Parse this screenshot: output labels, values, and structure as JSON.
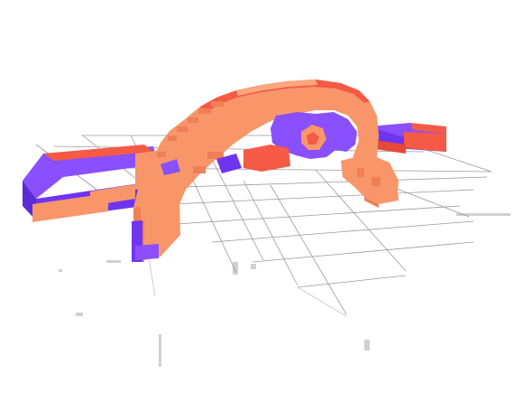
{
  "scene": {
    "kind": "voxel-model-viewport",
    "background": "#ffffff",
    "colors": {
      "orange": "#f8966a",
      "orange_light": "#fba77e",
      "orange_shade": "#ee7f56",
      "red": "#f45a45",
      "red_dark": "#e8483a",
      "purple": "#8a4fff",
      "purple_dark": "#6f34f0",
      "purple_side": "#5b2bd6",
      "grid": "#9a9a9a"
    },
    "grid": {
      "visible": true,
      "perspective": true
    }
  }
}
